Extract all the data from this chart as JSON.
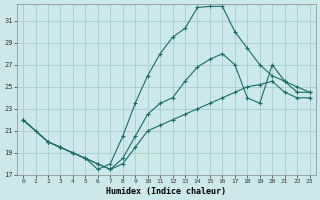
{
  "xlabel": "Humidex (Indice chaleur)",
  "bg_color": "#cce8e8",
  "grid_color": "#aacccc",
  "line_color": "#1a6b6b",
  "xlim": [
    -0.5,
    23.5
  ],
  "ylim": [
    17,
    32.5
  ],
  "yticks": [
    17,
    19,
    21,
    23,
    25,
    27,
    29,
    31
  ],
  "xticks": [
    0,
    1,
    2,
    3,
    4,
    5,
    6,
    7,
    8,
    9,
    10,
    11,
    12,
    13,
    14,
    15,
    16,
    17,
    18,
    19,
    20,
    21,
    22,
    23
  ],
  "line1_x": [
    0,
    1,
    2,
    3,
    4,
    5,
    6,
    7,
    8,
    9,
    10,
    11,
    12,
    13,
    14,
    15,
    16,
    17,
    18,
    19,
    20,
    21,
    22,
    23
  ],
  "line1_y": [
    22,
    21,
    20,
    19.5,
    19,
    18.5,
    17.5,
    18,
    20.5,
    23.5,
    26,
    28,
    29.5,
    30.3,
    32.2,
    32.3,
    32.3,
    30,
    28.5,
    27,
    26,
    25.5,
    24.5,
    24.5
  ],
  "line2_x": [
    0,
    2,
    3,
    4,
    5,
    6,
    7,
    8,
    9,
    10,
    11,
    12,
    13,
    14,
    15,
    16,
    17,
    18,
    19,
    20,
    21,
    22,
    23
  ],
  "line2_y": [
    22,
    20,
    19.5,
    19,
    18.5,
    18,
    17.5,
    18.5,
    20.5,
    22.5,
    23.5,
    24,
    25.5,
    26.8,
    27.5,
    28,
    27,
    24,
    23.5,
    27,
    25.5,
    25,
    24.5
  ],
  "line3_x": [
    0,
    2,
    3,
    4,
    5,
    6,
    7,
    8,
    9,
    10,
    11,
    12,
    13,
    14,
    15,
    16,
    17,
    18,
    19,
    20,
    21,
    22,
    23
  ],
  "line3_y": [
    22,
    20,
    19.5,
    19,
    18.5,
    18,
    17.5,
    18,
    19.5,
    21,
    21.5,
    22,
    22.5,
    23,
    23.5,
    24,
    24.5,
    25,
    25.2,
    25.5,
    24.5,
    24,
    24
  ]
}
